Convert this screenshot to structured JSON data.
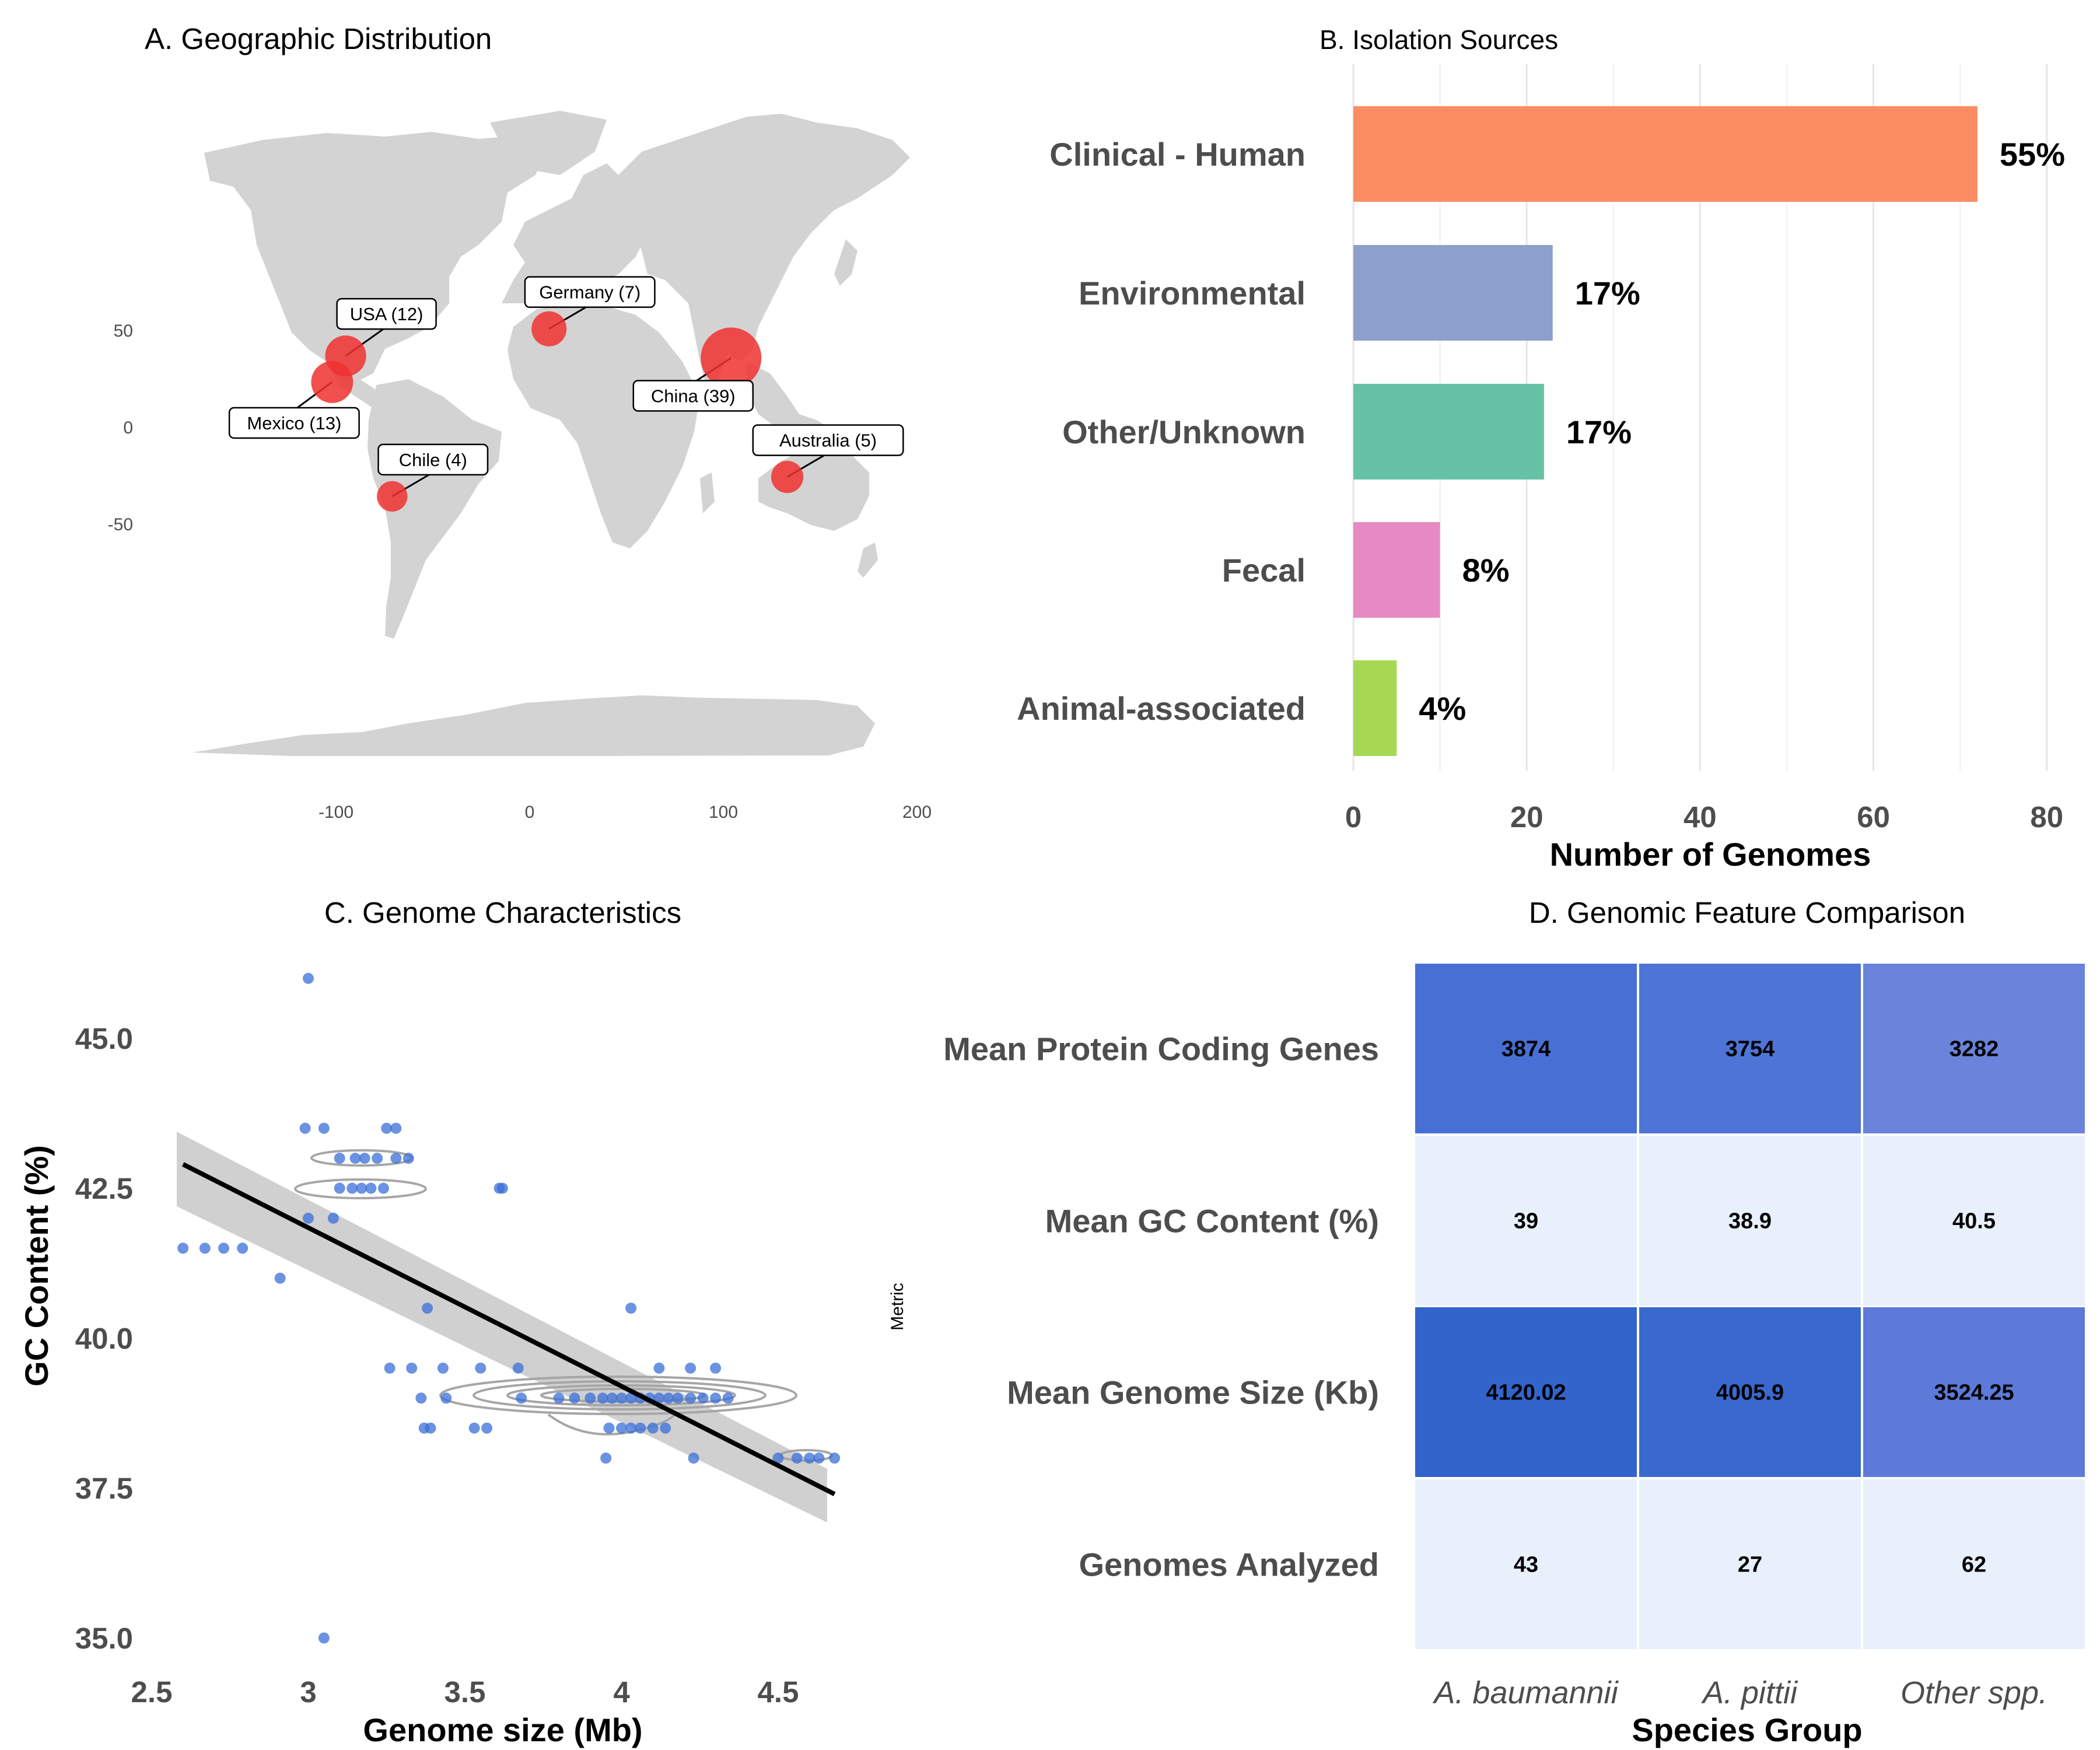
{
  "chart_data": [
    {
      "type": "scatter",
      "title": "A. Geographic Distribution",
      "xlim": [
        -180,
        200
      ],
      "ylim": [
        -60,
        85
      ],
      "x_ticks": [
        -100,
        0,
        100,
        200
      ],
      "y_ticks": [
        50,
        0,
        -50
      ],
      "grid": false,
      "background": "world-map",
      "point_color": "#f03030",
      "points": [
        {
          "label": "USA (12)",
          "lon": -95,
          "lat": 37,
          "count": 12
        },
        {
          "label": "Mexico (13)",
          "lon": -102,
          "lat": 23.5,
          "count": 13
        },
        {
          "label": "Germany (7)",
          "lon": 10,
          "lat": 51,
          "count": 7
        },
        {
          "label": "China (39)",
          "lon": 104,
          "lat": 36,
          "count": 39
        },
        {
          "label": "Chile (4)",
          "lon": -71,
          "lat": -35.5,
          "count": 4
        },
        {
          "label": "Australia (5)",
          "lon": 133,
          "lat": -25.5,
          "count": 5
        }
      ]
    },
    {
      "type": "bar",
      "orientation": "horizontal",
      "title": "B. Isolation Sources",
      "xlabel": "Number of Genomes",
      "xlim": [
        0,
        80
      ],
      "x_ticks": [
        0,
        20,
        40,
        60,
        80
      ],
      "grid": true,
      "categories": [
        "Clinical - Human",
        "Environmental",
        "Other/Unknown",
        "Fecal",
        "Animal-associated"
      ],
      "values": [
        72,
        23,
        22,
        10,
        5
      ],
      "labels": [
        "55%",
        "17%",
        "17%",
        "8%",
        "4%"
      ],
      "colors": [
        "#fc8d62",
        "#8da0cb",
        "#66c2a5",
        "#e78ac3",
        "#a6d854"
      ]
    },
    {
      "type": "scatter",
      "title": "C. Genome Characteristics",
      "xlabel": "Genome size (Mb)",
      "ylabel": "GC Content (%)",
      "xlim": [
        2.5,
        4.72
      ],
      "ylim": [
        34.6,
        46.4
      ],
      "x_ticks": [
        "2.5",
        "3",
        "3.5",
        "4",
        "4.5"
      ],
      "y_ticks": [
        "35.0",
        "37.5",
        "40.0",
        "42.5",
        "45.0"
      ],
      "grid": false,
      "point_color": "#3a6fd8",
      "trend_line": {
        "x": [
          2.6,
          4.68
        ],
        "y": [
          42.9,
          37.4
        ]
      },
      "points": [
        [
          3.0,
          46.0
        ],
        [
          3.05,
          35.0
        ],
        [
          2.99,
          43.5
        ],
        [
          3.05,
          43.5
        ],
        [
          3.25,
          43.5
        ],
        [
          3.28,
          43.5
        ],
        [
          3.1,
          43.0
        ],
        [
          3.15,
          43.0
        ],
        [
          3.18,
          43.0
        ],
        [
          3.22,
          43.0
        ],
        [
          3.28,
          43.0
        ],
        [
          3.32,
          43.0
        ],
        [
          3.1,
          42.5
        ],
        [
          3.14,
          42.5
        ],
        [
          3.17,
          42.5
        ],
        [
          3.2,
          42.5
        ],
        [
          3.24,
          42.5
        ],
        [
          3.61,
          42.5
        ],
        [
          3.62,
          42.5
        ],
        [
          3.0,
          42.0
        ],
        [
          3.08,
          42.0
        ],
        [
          2.6,
          41.5
        ],
        [
          2.67,
          41.5
        ],
        [
          2.73,
          41.5
        ],
        [
          2.79,
          41.5
        ],
        [
          2.91,
          41.0
        ],
        [
          3.38,
          40.5
        ],
        [
          4.03,
          40.5
        ],
        [
          3.26,
          39.5
        ],
        [
          3.33,
          39.5
        ],
        [
          3.43,
          39.5
        ],
        [
          3.55,
          39.5
        ],
        [
          3.67,
          39.5
        ],
        [
          4.12,
          39.5
        ],
        [
          4.22,
          39.5
        ],
        [
          4.3,
          39.5
        ],
        [
          3.36,
          39.0
        ],
        [
          3.44,
          39.0
        ],
        [
          3.68,
          39.0
        ],
        [
          3.8,
          39.0
        ],
        [
          3.85,
          39.0
        ],
        [
          3.9,
          39.0
        ],
        [
          3.94,
          39.0
        ],
        [
          3.97,
          39.0
        ],
        [
          4.0,
          39.0
        ],
        [
          4.03,
          39.0
        ],
        [
          4.06,
          39.0
        ],
        [
          4.09,
          39.0
        ],
        [
          4.12,
          39.0
        ],
        [
          4.15,
          39.0
        ],
        [
          4.18,
          39.0
        ],
        [
          4.22,
          39.0
        ],
        [
          4.26,
          39.0
        ],
        [
          4.3,
          39.0
        ],
        [
          4.34,
          39.0
        ],
        [
          3.37,
          38.5
        ],
        [
          3.39,
          38.5
        ],
        [
          3.53,
          38.5
        ],
        [
          3.57,
          38.5
        ],
        [
          3.96,
          38.5
        ],
        [
          4.0,
          38.5
        ],
        [
          4.03,
          38.5
        ],
        [
          4.06,
          38.5
        ],
        [
          4.1,
          38.5
        ],
        [
          4.14,
          38.5
        ],
        [
          3.95,
          38.0
        ],
        [
          4.23,
          38.0
        ],
        [
          4.5,
          38.0
        ],
        [
          4.56,
          38.0
        ],
        [
          4.6,
          38.0
        ],
        [
          4.63,
          38.0
        ],
        [
          4.68,
          38.0
        ]
      ]
    },
    {
      "type": "heatmap",
      "title": "D. Genomic Feature Comparison",
      "xlabel": "Species Group",
      "ylabel": "Metric",
      "columns": [
        "A. baumannii",
        "A. pittii",
        "Other spp."
      ],
      "rows": [
        "Mean Protein Coding Genes",
        "Mean GC Content (%)",
        "Mean Genome Size (Kb)",
        "Genomes Analyzed"
      ],
      "values": [
        [
          "3874",
          "3754",
          "3282"
        ],
        [
          "39",
          "38.9",
          "40.5"
        ],
        [
          "4120.02",
          "4005.9",
          "3524.25"
        ],
        [
          "43",
          "27",
          "62"
        ]
      ],
      "colors": [
        [
          "#4870d4",
          "#4e74d6",
          "#6984da"
        ],
        [
          "#e8f0fc",
          "#e8f0fc",
          "#e8f0fc"
        ],
        [
          "#3364cc",
          "#3a69ce",
          "#5d7ad8"
        ],
        [
          "#e8f0fc",
          "#e8f0fc",
          "#e8f0fc"
        ]
      ]
    }
  ]
}
